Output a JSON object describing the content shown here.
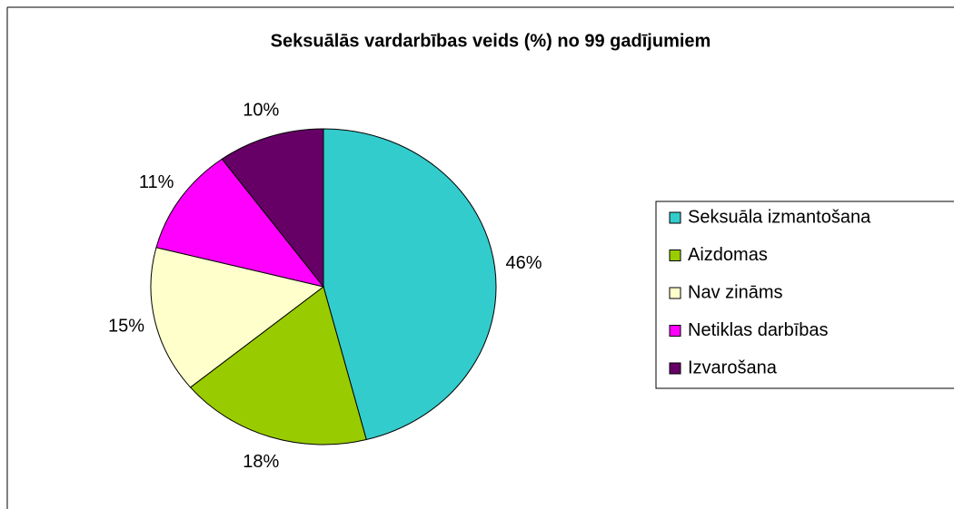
{
  "chart_data": {
    "type": "pie",
    "title": "Seksuālās vardarbības veids (%) no 99 gadījumiem",
    "categories": [
      "Seksuāla izmantošana",
      "Aizdomas",
      "Nav zināms",
      "Netiklas darbības",
      "Izvarošana"
    ],
    "values": [
      46,
      18,
      15,
      11,
      10
    ],
    "value_labels": [
      "46%",
      "18%",
      "15%",
      "11%",
      "10%"
    ],
    "colors": [
      "#33CCCC",
      "#99CC00",
      "#FFFFCC",
      "#FF00FF",
      "#660066"
    ],
    "legend": "right"
  }
}
